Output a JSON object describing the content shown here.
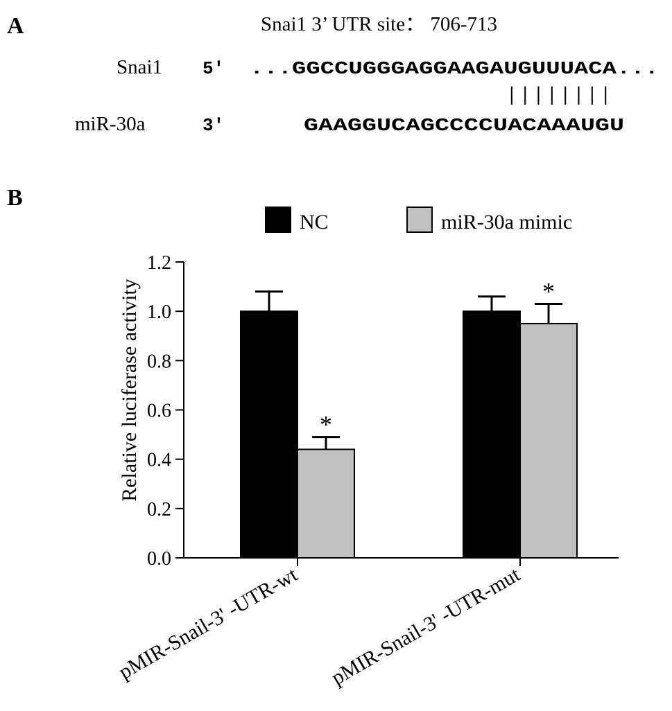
{
  "panel_a": {
    "label": "A",
    "site_title": "Snai1 3’ UTR site： 706-713",
    "target": {
      "name": "Snai1",
      "end": "5'",
      "sequence": "...GGCCUGGGAGGAAGAUGUUUACA..."
    },
    "mirna": {
      "name": "miR-30a",
      "end": "3'",
      "sequence": "GAAGGUCAGCCCCUACAAAUGU"
    },
    "pairing_lines": "| | | | | | | |"
  },
  "panel_b": {
    "label": "B"
  },
  "chart_data": {
    "type": "bar",
    "categories": [
      "pMIR-Snail-3' -UTR-wt",
      "pMIR-Snail-3' -UTR-mut"
    ],
    "series": [
      {
        "name": "NC",
        "values": [
          1.0,
          1.0
        ],
        "errors": [
          0.08,
          0.06
        ],
        "color": "#000000",
        "significance": [
          "",
          ""
        ]
      },
      {
        "name": "miR-30a mimic",
        "values": [
          0.44,
          0.95
        ],
        "errors": [
          0.05,
          0.08
        ],
        "color": "#c0c0c0",
        "significance": [
          "*",
          "*"
        ]
      }
    ],
    "ylabel": "Relative luciferase activity",
    "xlabel": "",
    "ylim": [
      0,
      1.2
    ],
    "yticks": [
      "0.0",
      "0.2",
      "0.4",
      "0.6",
      "0.8",
      "1.0",
      "1.2"
    ],
    "grid": false,
    "legend_position": "top"
  }
}
